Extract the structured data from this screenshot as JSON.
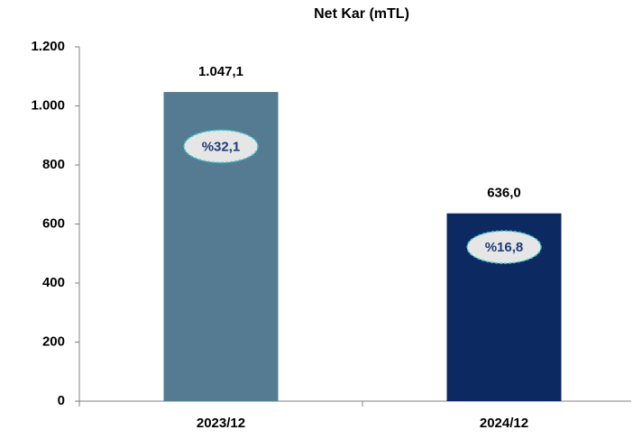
{
  "chart_data": {
    "type": "bar",
    "title": "Net Kar (mTL)",
    "categories": [
      "2023/12",
      "2024/12"
    ],
    "values": [
      1047.1,
      636.0
    ],
    "value_labels": [
      "1.047,1",
      "636,0"
    ],
    "colors": [
      "#557b93",
      "#0c2961"
    ],
    "annotations": [
      "%32,1",
      "%16,8"
    ],
    "ylim": [
      0,
      1200
    ],
    "yticks": [
      0,
      200,
      400,
      600,
      800,
      {
        "value": 1000,
        "label": "1.000"
      },
      {
        "value": 1200,
        "label": "1.200"
      }
    ],
    "grid": false
  }
}
